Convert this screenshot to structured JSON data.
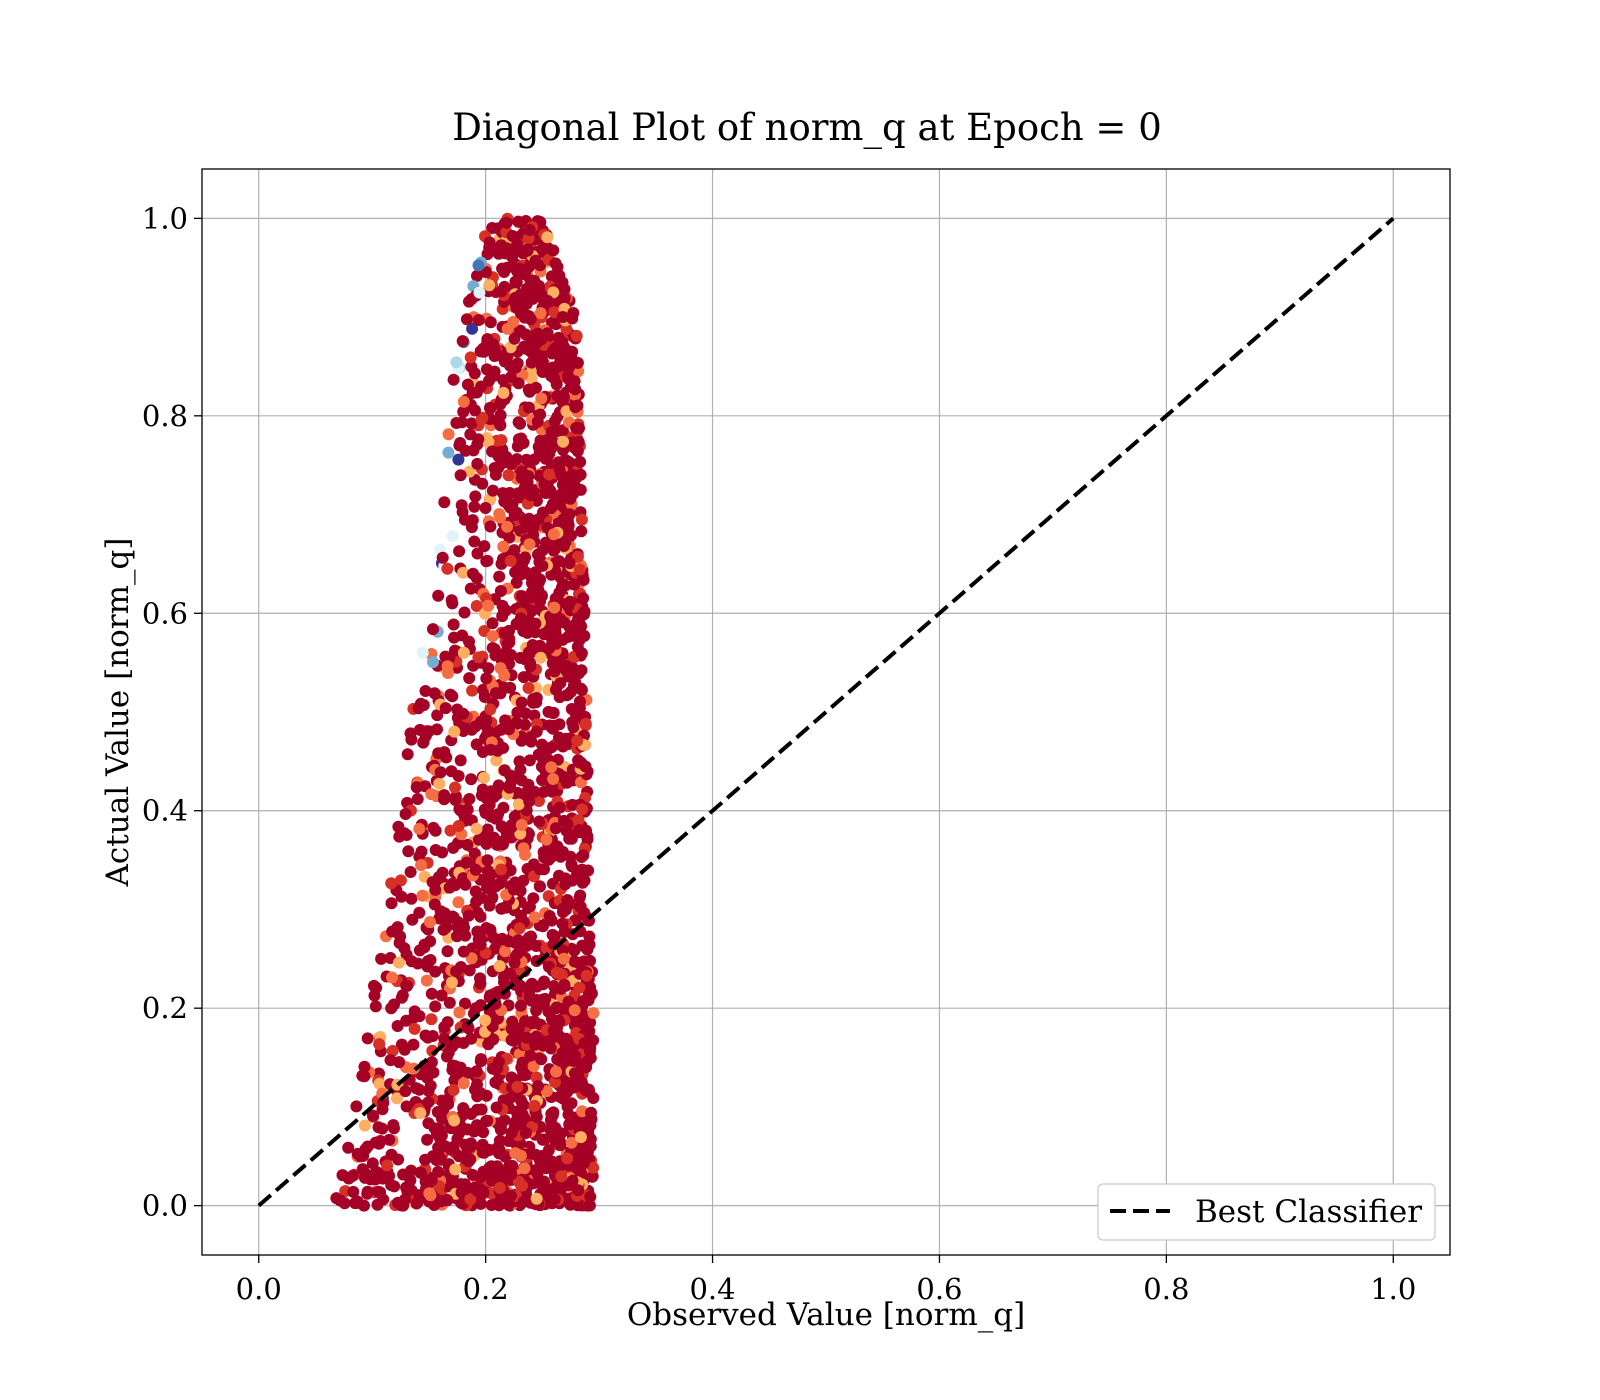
{
  "chart_data": {
    "type": "scatter",
    "title": "Diagonal Plot of norm_q at Epoch = 0",
    "xlabel": "Observed Value [norm_q]",
    "ylabel": "Actual Value [norm_q]",
    "xlim": [
      -0.05,
      1.05
    ],
    "ylim": [
      -0.05,
      1.05
    ],
    "xticks": [
      "0.0",
      "0.2",
      "0.4",
      "0.6",
      "0.8",
      "1.0"
    ],
    "yticks": [
      "0.0",
      "0.2",
      "0.4",
      "0.6",
      "0.8",
      "1.0"
    ],
    "grid": true,
    "legend": {
      "placement": "lower-right",
      "entries": [
        "Best Classifier"
      ]
    },
    "reference_line": {
      "name": "Best Classifier",
      "style": "dashed",
      "color": "#000000",
      "x": [
        0,
        1
      ],
      "y": [
        0,
        1
      ]
    },
    "scatter_region": {
      "description_points": [
        {
          "y": 0.0,
          "x_min": 0.065,
          "x_max": 0.295
        },
        {
          "y": 0.1,
          "x_min": 0.085,
          "x_max": 0.295
        },
        {
          "y": 0.2,
          "x_min": 0.095,
          "x_max": 0.295
        },
        {
          "y": 0.3,
          "x_min": 0.11,
          "x_max": 0.292
        },
        {
          "y": 0.4,
          "x_min": 0.125,
          "x_max": 0.29
        },
        {
          "y": 0.5,
          "x_min": 0.135,
          "x_max": 0.29
        },
        {
          "y": 0.6,
          "x_min": 0.15,
          "x_max": 0.288
        },
        {
          "y": 0.7,
          "x_min": 0.16,
          "x_max": 0.285
        },
        {
          "y": 0.8,
          "x_min": 0.165,
          "x_max": 0.283
        },
        {
          "y": 0.9,
          "x_min": 0.18,
          "x_max": 0.28
        },
        {
          "y": 1.0,
          "x_min": 0.2,
          "x_max": 0.25
        }
      ],
      "colormap": [
        "#a50026",
        "#d73027",
        "#f46d43",
        "#fdae61",
        "#fee090",
        "#e0f3f8",
        "#abd9e9",
        "#74add1",
        "#4575b4",
        "#313695"
      ]
    },
    "colors": {
      "grid": "#b0b0b0",
      "dominant_point": "#a50026"
    }
  }
}
